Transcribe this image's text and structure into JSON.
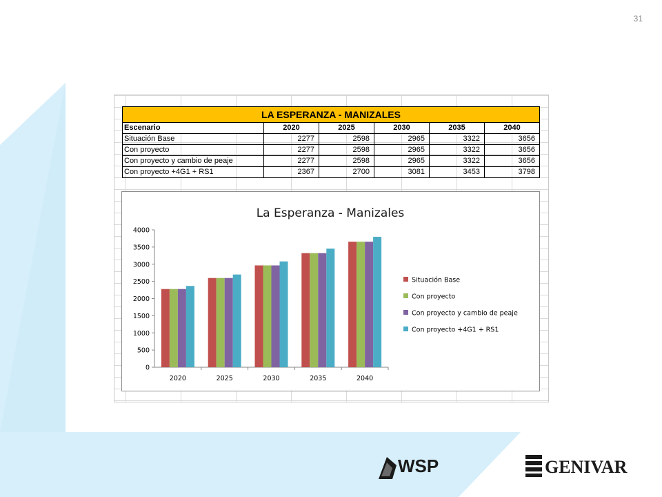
{
  "page_number": "31",
  "table": {
    "title": "LA ESPERANZA - MANIZALES",
    "header": [
      "Escenario",
      "2020",
      "2025",
      "2030",
      "2035",
      "2040"
    ],
    "rows": [
      {
        "label": "Situación Base",
        "values": [
          "2277",
          "2598",
          "2965",
          "3322",
          "3656"
        ]
      },
      {
        "label": "Con proyecto",
        "values": [
          "2277",
          "2598",
          "2965",
          "3322",
          "3656"
        ]
      },
      {
        "label": "Con proyecto y cambio de peaje",
        "values": [
          "2277",
          "2598",
          "2965",
          "3322",
          "3656"
        ]
      },
      {
        "label": "Con proyecto +4G1 + RS1",
        "values": [
          "2367",
          "2700",
          "3081",
          "3453",
          "3798"
        ]
      }
    ]
  },
  "chart_data": {
    "type": "bar",
    "title": "La Esperanza - Manizales",
    "categories": [
      "2020",
      "2025",
      "2030",
      "2035",
      "2040"
    ],
    "series": [
      {
        "name": "Situación Base",
        "color": "#c0504d",
        "values": [
          2277,
          2598,
          2965,
          3322,
          3656
        ]
      },
      {
        "name": "Con proyecto",
        "color": "#9bbb59",
        "values": [
          2277,
          2598,
          2965,
          3322,
          3656
        ]
      },
      {
        "name": "Con proyecto y cambio de peaje",
        "color": "#8064a2",
        "values": [
          2277,
          2598,
          2965,
          3322,
          3656
        ]
      },
      {
        "name": "Con proyecto +4G1 + RS1",
        "color": "#4bacc6",
        "values": [
          2367,
          2700,
          3081,
          3453,
          3798
        ]
      }
    ],
    "ylim": [
      0,
      4000
    ],
    "yticks": [
      "0",
      "500",
      "1000",
      "1500",
      "2000",
      "2500",
      "3000",
      "3500",
      "4000"
    ],
    "legend": "right",
    "grid": false
  },
  "logos": {
    "left": "WSP",
    "right": "GENIVAR"
  }
}
